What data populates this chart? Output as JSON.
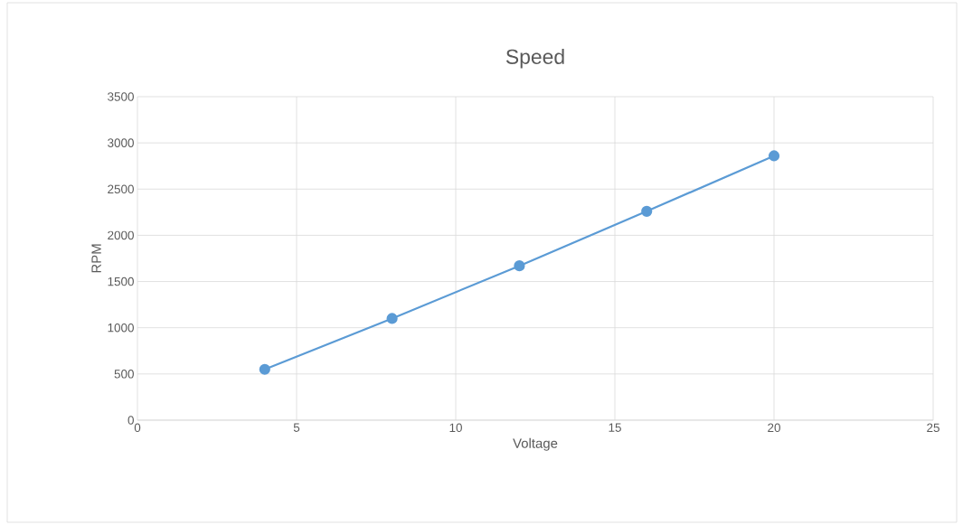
{
  "chart_data": {
    "type": "line",
    "title": "Speed",
    "xlabel": "Voltage",
    "ylabel": "RPM",
    "x": [
      4,
      8,
      12,
      16,
      20
    ],
    "series": [
      {
        "color": "#5b9bd5",
        "values": [
          550,
          1100,
          1670,
          2260,
          2860
        ]
      }
    ],
    "xlim": [
      0,
      25
    ],
    "xticks": [
      0,
      5,
      10,
      15,
      20,
      25
    ],
    "ylim": [
      0,
      3500
    ],
    "yticks": [
      0,
      500,
      1000,
      1500,
      2000,
      2500,
      3000,
      3500
    ],
    "grid": true,
    "marker": "circle",
    "line_style": "solid"
  }
}
